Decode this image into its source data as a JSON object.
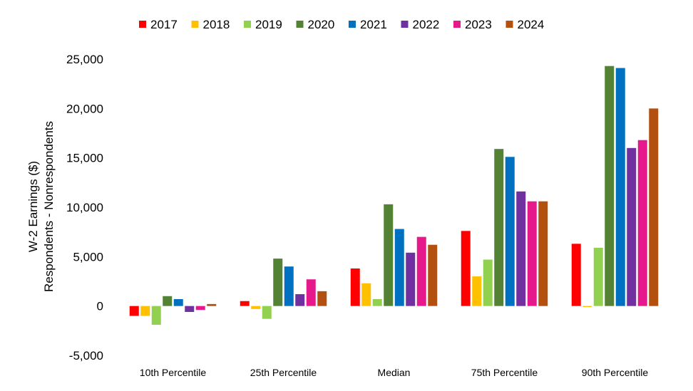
{
  "chart_data": {
    "type": "bar",
    "categories": [
      "10th Percentile",
      "25th Percentile",
      "Median",
      "75th Percentile",
      "90th Percentile"
    ],
    "ylabel_line1": "W-2 Earnings ($)",
    "ylabel_line2": "Respondents - Nonrespondents",
    "ylim": [
      -5000,
      25000
    ],
    "yticks": [
      -5000,
      0,
      5000,
      10000,
      15000,
      20000,
      25000
    ],
    "ytick_labels": [
      "-5,000",
      "0",
      "5,000",
      "10,000",
      "15,000",
      "20,000",
      "25,000"
    ],
    "grid": false,
    "legend_position": "top",
    "series": [
      {
        "name": "2017",
        "color": "#ff0000",
        "values": [
          -1000,
          500,
          3800,
          7600,
          6300
        ]
      },
      {
        "name": "2018",
        "color": "#ffc000",
        "values": [
          -1000,
          -300,
          2300,
          3000,
          -100
        ]
      },
      {
        "name": "2019",
        "color": "#92d050",
        "values": [
          -1900,
          -1300,
          700,
          4700,
          5900
        ]
      },
      {
        "name": "2020",
        "color": "#548235",
        "values": [
          1000,
          4800,
          10300,
          15900,
          24300
        ]
      },
      {
        "name": "2021",
        "color": "#0070c0",
        "values": [
          700,
          4000,
          7800,
          15100,
          24100
        ]
      },
      {
        "name": "2022",
        "color": "#7030a0",
        "values": [
          -600,
          1200,
          5400,
          11600,
          16000
        ]
      },
      {
        "name": "2023",
        "color": "#e6198c",
        "values": [
          -400,
          2700,
          7000,
          10600,
          16800
        ]
      },
      {
        "name": "2024",
        "color": "#b4500f",
        "values": [
          200,
          1500,
          6200,
          10600,
          20000
        ]
      }
    ]
  }
}
